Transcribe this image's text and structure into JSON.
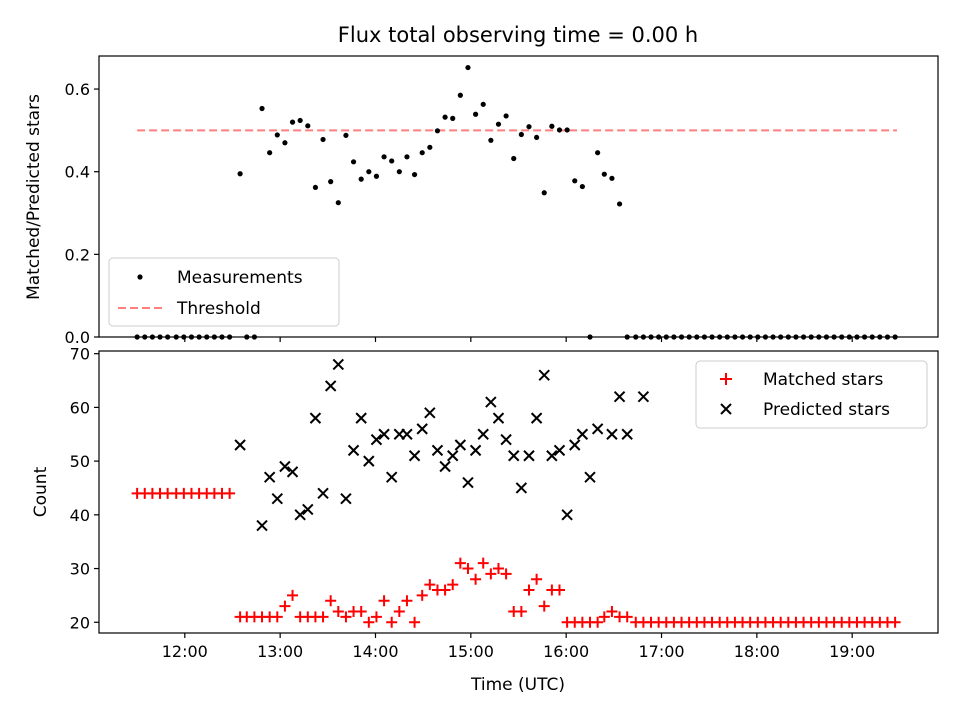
{
  "chart_data": {
    "type": "scatter",
    "title": "Flux total observing time = 0.00 h",
    "xlabel": "Time (UTC)",
    "x_ticks": [
      "12:00",
      "13:00",
      "14:00",
      "15:00",
      "16:00",
      "17:00",
      "18:00",
      "19:00"
    ],
    "x_tick_hours": [
      12,
      13,
      14,
      15,
      16,
      17,
      18,
      19
    ],
    "xlim_hours": [
      11.1,
      19.9
    ],
    "panels": [
      {
        "ylabel": "Matched/Predicted stars",
        "ylim": [
          0,
          0.68
        ],
        "y_ticks": [
          "0.0",
          "0.2",
          "0.4",
          "0.6"
        ],
        "y_tick_values": [
          0.0,
          0.2,
          0.4,
          0.6
        ],
        "legend_position": "lower-left",
        "legend": [
          {
            "label": "Measurements",
            "marker": "dot",
            "color": "#000000"
          },
          {
            "label": "Threshold",
            "marker": "dashed-line",
            "color": "#ff7f7f"
          }
        ],
        "threshold": {
          "value": 0.5,
          "x_start_hours": 11.5,
          "x_end_hours": 19.47,
          "color": "#ff7f7f"
        },
        "series": [
          {
            "label": "Measurements",
            "color": "#000000",
            "x_hours": [
              11.5,
              11.58,
              11.66,
              11.74,
              11.82,
              11.91,
              11.99,
              12.07,
              12.15,
              12.23,
              12.31,
              12.39,
              12.47,
              12.58,
              12.65,
              12.73,
              12.81,
              12.89,
              12.97,
              13.05,
              13.13,
              13.21,
              13.29,
              13.37,
              13.45,
              13.53,
              13.61,
              13.69,
              13.77,
              13.85,
              13.93,
              14.01,
              14.09,
              14.17,
              14.25,
              14.33,
              14.41,
              14.49,
              14.57,
              14.65,
              14.73,
              14.81,
              14.89,
              14.97,
              15.05,
              15.13,
              15.21,
              15.29,
              15.37,
              15.45,
              15.53,
              15.61,
              15.69,
              15.77,
              15.85,
              15.93,
              16.01,
              16.09,
              16.17,
              16.25,
              16.33,
              16.4,
              16.48,
              16.56,
              16.64,
              16.73,
              16.81,
              16.89,
              16.97,
              17.05,
              17.13,
              17.21,
              17.29,
              17.37,
              17.45,
              17.53,
              17.61,
              17.69,
              17.77,
              17.85,
              17.93,
              18.01,
              18.09,
              18.17,
              18.25,
              18.33,
              18.41,
              18.49,
              18.57,
              18.65,
              18.73,
              18.81,
              18.89,
              18.97,
              19.05,
              19.13,
              19.21,
              19.29,
              19.37,
              19.45
            ],
            "y": [
              0,
              0,
              0,
              0,
              0,
              0,
              0,
              0,
              0,
              0,
              0,
              0,
              0,
              0.395,
              0,
              0,
              0.553,
              0.446,
              0.489,
              0.47,
              0.52,
              0.524,
              0.511,
              0.362,
              0.478,
              0.376,
              0.325,
              0.488,
              0.424,
              0.382,
              0.4,
              0.389,
              0.436,
              0.426,
              0.4,
              0.436,
              0.393,
              0.446,
              0.459,
              0.499,
              0.532,
              0.529,
              0.585,
              0.652,
              0.539,
              0.563,
              0.476,
              0.515,
              0.535,
              0.432,
              0.49,
              0.509,
              0.483,
              0.349,
              0.51,
              0.501,
              0.501,
              0.378,
              0.364,
              0,
              0.446,
              0.394,
              0.384,
              0.322,
              0,
              0,
              0,
              0,
              0,
              0,
              0,
              0,
              0,
              0,
              0,
              0,
              0,
              0,
              0,
              0,
              0,
              0,
              0,
              0,
              0,
              0,
              0,
              0,
              0,
              0,
              0,
              0,
              0,
              0,
              0,
              0,
              0,
              0,
              0,
              0
            ]
          }
        ]
      },
      {
        "ylabel": "Count",
        "ylim": [
          18,
          70.5
        ],
        "y_ticks": [
          "20",
          "30",
          "40",
          "50",
          "60",
          "70"
        ],
        "y_tick_values": [
          20,
          30,
          40,
          50,
          60,
          70
        ],
        "legend_position": "upper-right",
        "legend": [
          {
            "label": "Matched stars",
            "marker": "plus",
            "color": "#ff0000"
          },
          {
            "label": "Predicted stars",
            "marker": "x",
            "color": "#000000"
          }
        ],
        "series": [
          {
            "label": "Matched stars",
            "marker": "plus",
            "color": "#ff0000",
            "x_hours": [
              11.5,
              11.58,
              11.66,
              11.74,
              11.82,
              11.91,
              11.99,
              12.07,
              12.15,
              12.23,
              12.31,
              12.39,
              12.47,
              12.58,
              12.65,
              12.73,
              12.81,
              12.89,
              12.97,
              13.05,
              13.13,
              13.21,
              13.29,
              13.37,
              13.45,
              13.53,
              13.61,
              13.69,
              13.77,
              13.85,
              13.93,
              14.01,
              14.09,
              14.17,
              14.25,
              14.33,
              14.41,
              14.49,
              14.57,
              14.65,
              14.73,
              14.81,
              14.89,
              14.97,
              15.05,
              15.13,
              15.21,
              15.29,
              15.37,
              15.45,
              15.53,
              15.61,
              15.69,
              15.77,
              15.85,
              15.93,
              16.01,
              16.09,
              16.17,
              16.25,
              16.33,
              16.4,
              16.48,
              16.56,
              16.64,
              16.73,
              16.81,
              16.89,
              16.97,
              17.05,
              17.13,
              17.21,
              17.29,
              17.37,
              17.45,
              17.53,
              17.61,
              17.69,
              17.77,
              17.85,
              17.93,
              18.01,
              18.09,
              18.17,
              18.25,
              18.33,
              18.41,
              18.49,
              18.57,
              18.65,
              18.73,
              18.81,
              18.89,
              18.97,
              19.05,
              19.13,
              19.21,
              19.29,
              19.37,
              19.45
            ],
            "y": [
              44,
              44,
              44,
              44,
              44,
              44,
              44,
              44,
              44,
              44,
              44,
              44,
              44,
              21,
              21,
              21,
              21,
              21,
              21,
              23,
              25,
              21,
              21,
              21,
              21,
              24,
              22,
              21,
              22,
              22,
              20,
              21,
              24,
              20,
              22,
              24,
              20,
              25,
              27,
              26,
              26,
              27,
              31,
              30,
              28,
              31,
              29,
              30,
              29,
              22,
              22,
              26,
              28,
              23,
              26,
              26,
              20,
              20,
              20,
              20,
              20,
              21,
              22,
              21,
              21,
              20,
              20,
              20,
              20,
              20,
              20,
              20,
              20,
              20,
              20,
              20,
              20,
              20,
              20,
              20,
              20,
              20,
              20,
              20,
              20,
              20,
              20,
              20,
              20,
              20,
              20,
              20,
              20,
              20,
              20,
              20,
              20,
              20,
              20,
              20
            ]
          },
          {
            "label": "Predicted stars",
            "marker": "x",
            "color": "#000000",
            "x_hours": [
              12.58,
              12.81,
              12.89,
              12.97,
              13.05,
              13.13,
              13.21,
              13.29,
              13.37,
              13.45,
              13.53,
              13.61,
              13.69,
              13.77,
              13.85,
              13.93,
              14.01,
              14.09,
              14.17,
              14.25,
              14.33,
              14.41,
              14.49,
              14.57,
              14.65,
              14.73,
              14.81,
              14.89,
              14.97,
              15.05,
              15.13,
              15.21,
              15.29,
              15.37,
              15.45,
              15.53,
              15.61,
              15.69,
              15.77,
              15.85,
              15.93,
              16.01,
              16.09,
              16.17,
              16.25,
              16.33,
              16.48,
              16.56,
              16.64,
              16.81
            ],
            "y": [
              53,
              38,
              47,
              43,
              49,
              48,
              40,
              41,
              58,
              44,
              64,
              68,
              43,
              52,
              58,
              50,
              54,
              55,
              47,
              55,
              55,
              51,
              56,
              59,
              52,
              49,
              51,
              53,
              46,
              52,
              55,
              61,
              58,
              54,
              51,
              45,
              51,
              58,
              66,
              51,
              52,
              40,
              53,
              55,
              47,
              56,
              55,
              62,
              55,
              62
            ]
          }
        ]
      }
    ]
  }
}
